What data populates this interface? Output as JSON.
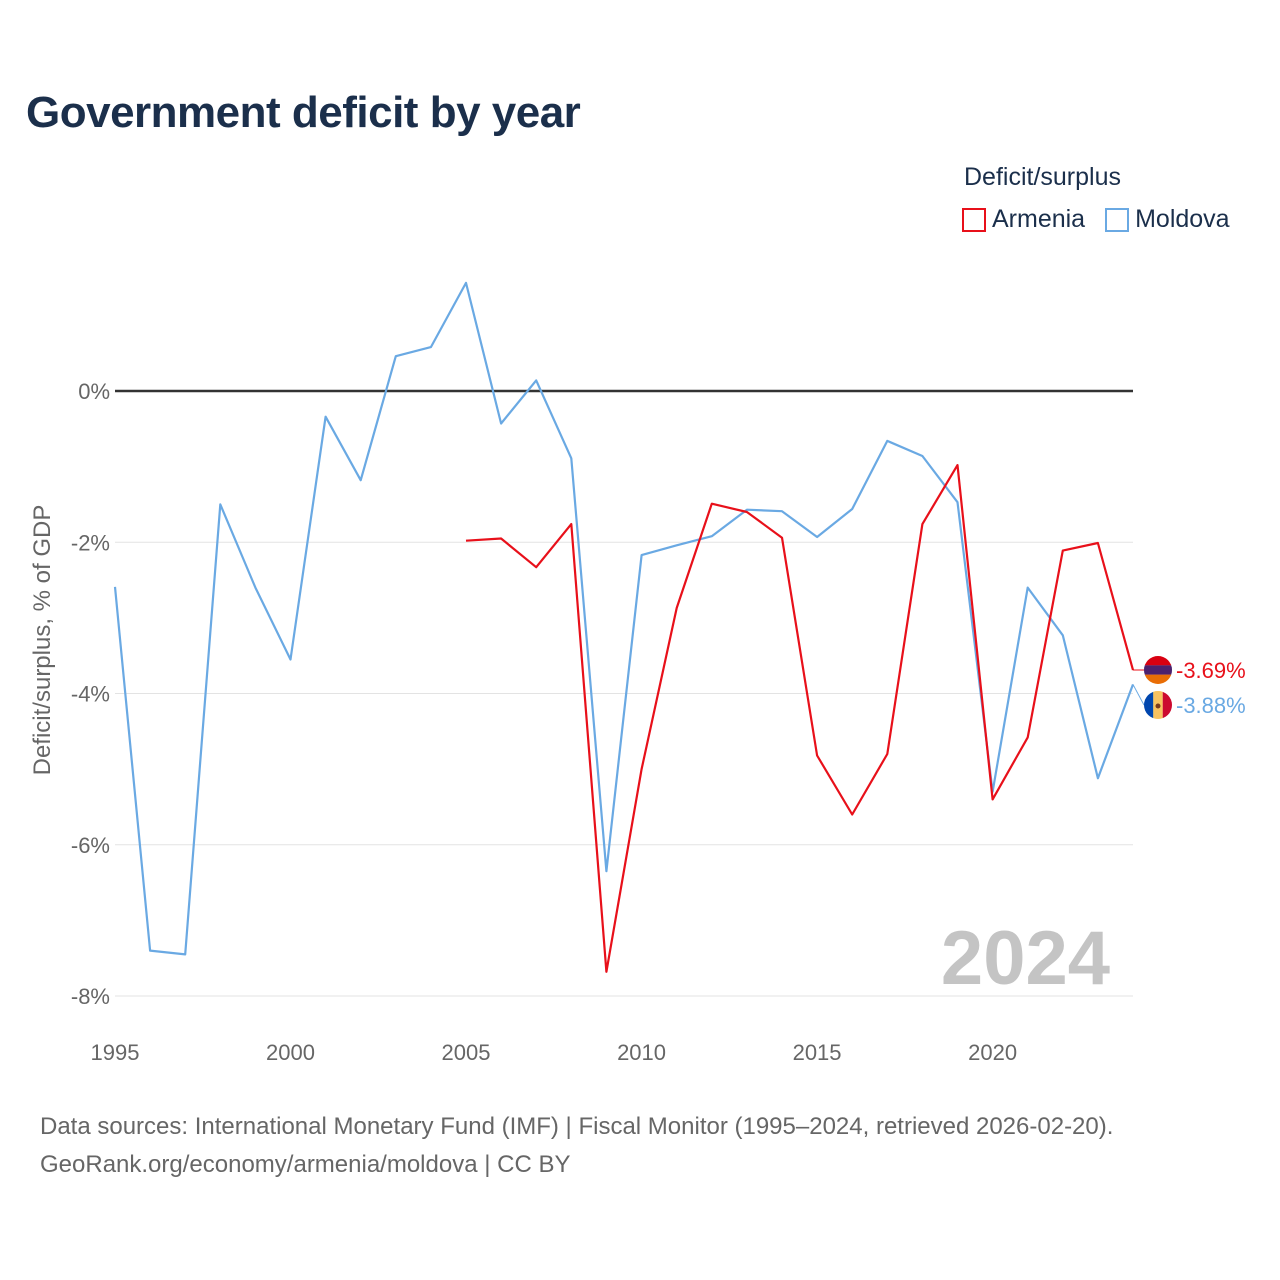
{
  "title": "Government deficit by year",
  "legend": {
    "title": "Deficit/surplus",
    "items": [
      {
        "label": "Armenia",
        "color": "#e8101a"
      },
      {
        "label": "Moldova",
        "color": "#6aa9e3"
      }
    ]
  },
  "year_watermark": "2024",
  "source": {
    "line1": "Data sources: International Monetary Fund (IMF) | Fiscal Monitor (1995–2024, retrieved 2026-02-20).",
    "line2": "GeoRank.org/economy/armenia/moldova | CC BY"
  },
  "chart_data": {
    "type": "line",
    "title": "Government deficit by year",
    "xlabel": "",
    "ylabel": "Deficit/surplus, % of GDP",
    "xlim": [
      1995,
      2024
    ],
    "ylim": [
      -8,
      1.6
    ],
    "y_ticks": [
      0,
      -2,
      -4,
      -6,
      -8
    ],
    "y_tick_labels": [
      "0%",
      "-2%",
      "-4%",
      "-6%",
      "-8%"
    ],
    "x_ticks": [
      1995,
      2000,
      2005,
      2010,
      2015,
      2020
    ],
    "x_tick_labels": [
      "1995",
      "2000",
      "2005",
      "2010",
      "2015",
      "2020"
    ],
    "series": [
      {
        "name": "Moldova",
        "color": "#6aa9e3",
        "end_label": "-3.88%",
        "x": [
          1995,
          1996,
          1997,
          1998,
          1999,
          2000,
          2001,
          2002,
          2003,
          2004,
          2005,
          2006,
          2007,
          2008,
          2009,
          2010,
          2011,
          2012,
          2013,
          2014,
          2015,
          2016,
          2017,
          2018,
          2019,
          2020,
          2021,
          2022,
          2023,
          2024
        ],
        "values": [
          -2.59,
          -7.4,
          -7.45,
          -1.5,
          -2.6,
          -3.55,
          -0.34,
          -1.18,
          0.46,
          0.58,
          1.43,
          -0.43,
          0.14,
          -0.89,
          -6.35,
          -2.17,
          -2.04,
          -1.92,
          -1.57,
          -1.59,
          -1.93,
          -1.56,
          -0.66,
          -0.86,
          -1.47,
          -5.3,
          -2.6,
          -3.23,
          -5.12,
          -3.88
        ]
      },
      {
        "name": "Armenia",
        "color": "#e8101a",
        "end_label": "-3.69%",
        "x": [
          2005,
          2006,
          2007,
          2008,
          2009,
          2010,
          2011,
          2012,
          2013,
          2014,
          2015,
          2016,
          2017,
          2018,
          2019,
          2020,
          2021,
          2022,
          2023,
          2024
        ],
        "values": [
          -1.98,
          -1.95,
          -2.33,
          -1.76,
          -7.68,
          -5.0,
          -2.87,
          -1.49,
          -1.6,
          -1.94,
          -4.82,
          -5.6,
          -4.8,
          -1.76,
          -0.98,
          -5.4,
          -4.58,
          -2.11,
          -2.01,
          -3.69
        ]
      }
    ]
  }
}
